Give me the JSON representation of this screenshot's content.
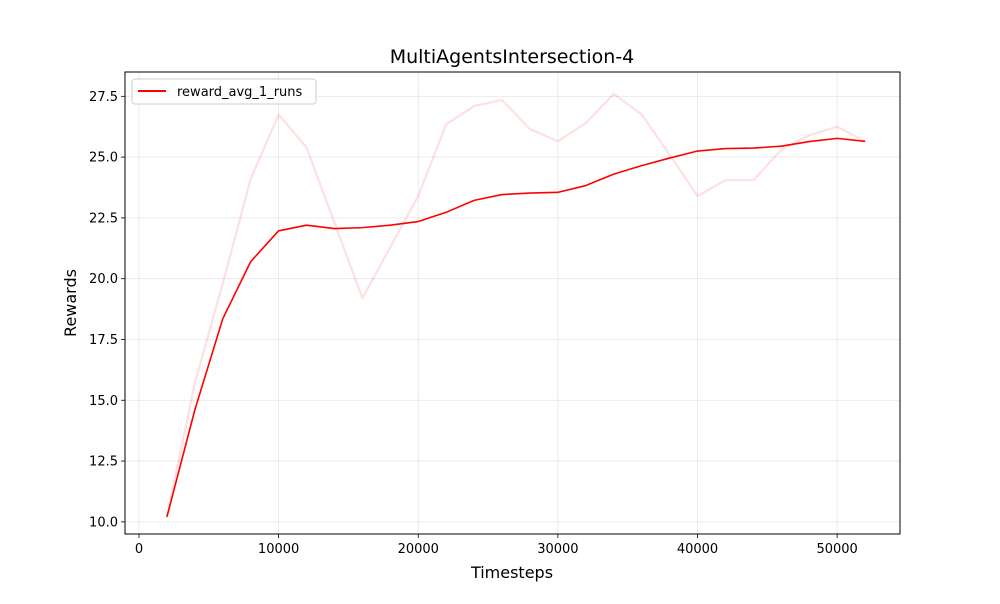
{
  "chart_data": {
    "type": "line",
    "title": "MultiAgentsIntersection-4",
    "xlabel": "Timesteps",
    "ylabel": "Rewards",
    "xlim": [
      -1000,
      54500
    ],
    "ylim": [
      9.5,
      28.5
    ],
    "xticks": [
      0,
      10000,
      20000,
      30000,
      40000,
      50000
    ],
    "xtick_labels": [
      "0",
      "10000",
      "20000",
      "30000",
      "40000",
      "50000"
    ],
    "yticks": [
      10.0,
      12.5,
      15.0,
      17.5,
      20.0,
      22.5,
      25.0,
      27.5
    ],
    "ytick_labels": [
      "10.0",
      "12.5",
      "15.0",
      "17.5",
      "20.0",
      "22.5",
      "25.0",
      "27.5"
    ],
    "grid": true,
    "legend_position": "top-left",
    "x": [
      2000,
      4000,
      6000,
      8000,
      10000,
      12000,
      14000,
      16000,
      18000,
      20000,
      22000,
      24000,
      26000,
      28000,
      30000,
      32000,
      34000,
      36000,
      38000,
      40000,
      42000,
      44000,
      46000,
      48000,
      50000,
      52000
    ],
    "series": [
      {
        "name": "reward_avg_1_runs",
        "color": "#ff0000",
        "in_legend": true,
        "opacity": 1.0,
        "values": [
          10.2,
          14.6,
          18.35,
          20.7,
          21.97,
          22.2,
          22.06,
          22.1,
          22.2,
          22.35,
          22.73,
          23.22,
          23.46,
          23.52,
          23.55,
          23.83,
          24.3,
          24.65,
          24.96,
          25.25,
          25.35,
          25.37,
          25.45,
          25.64,
          25.77,
          25.65
        ]
      },
      {
        "name": "",
        "color": "#ff0000",
        "in_legend": false,
        "opacity": 0.12,
        "values": [
          10.2,
          15.7,
          19.8,
          24.1,
          26.75,
          25.4,
          22.3,
          19.2,
          21.3,
          23.4,
          26.35,
          27.1,
          27.35,
          26.15,
          25.65,
          26.4,
          27.6,
          26.75,
          25.1,
          23.4,
          24.05,
          24.05,
          25.3,
          25.9,
          26.25,
          25.65
        ]
      }
    ]
  }
}
